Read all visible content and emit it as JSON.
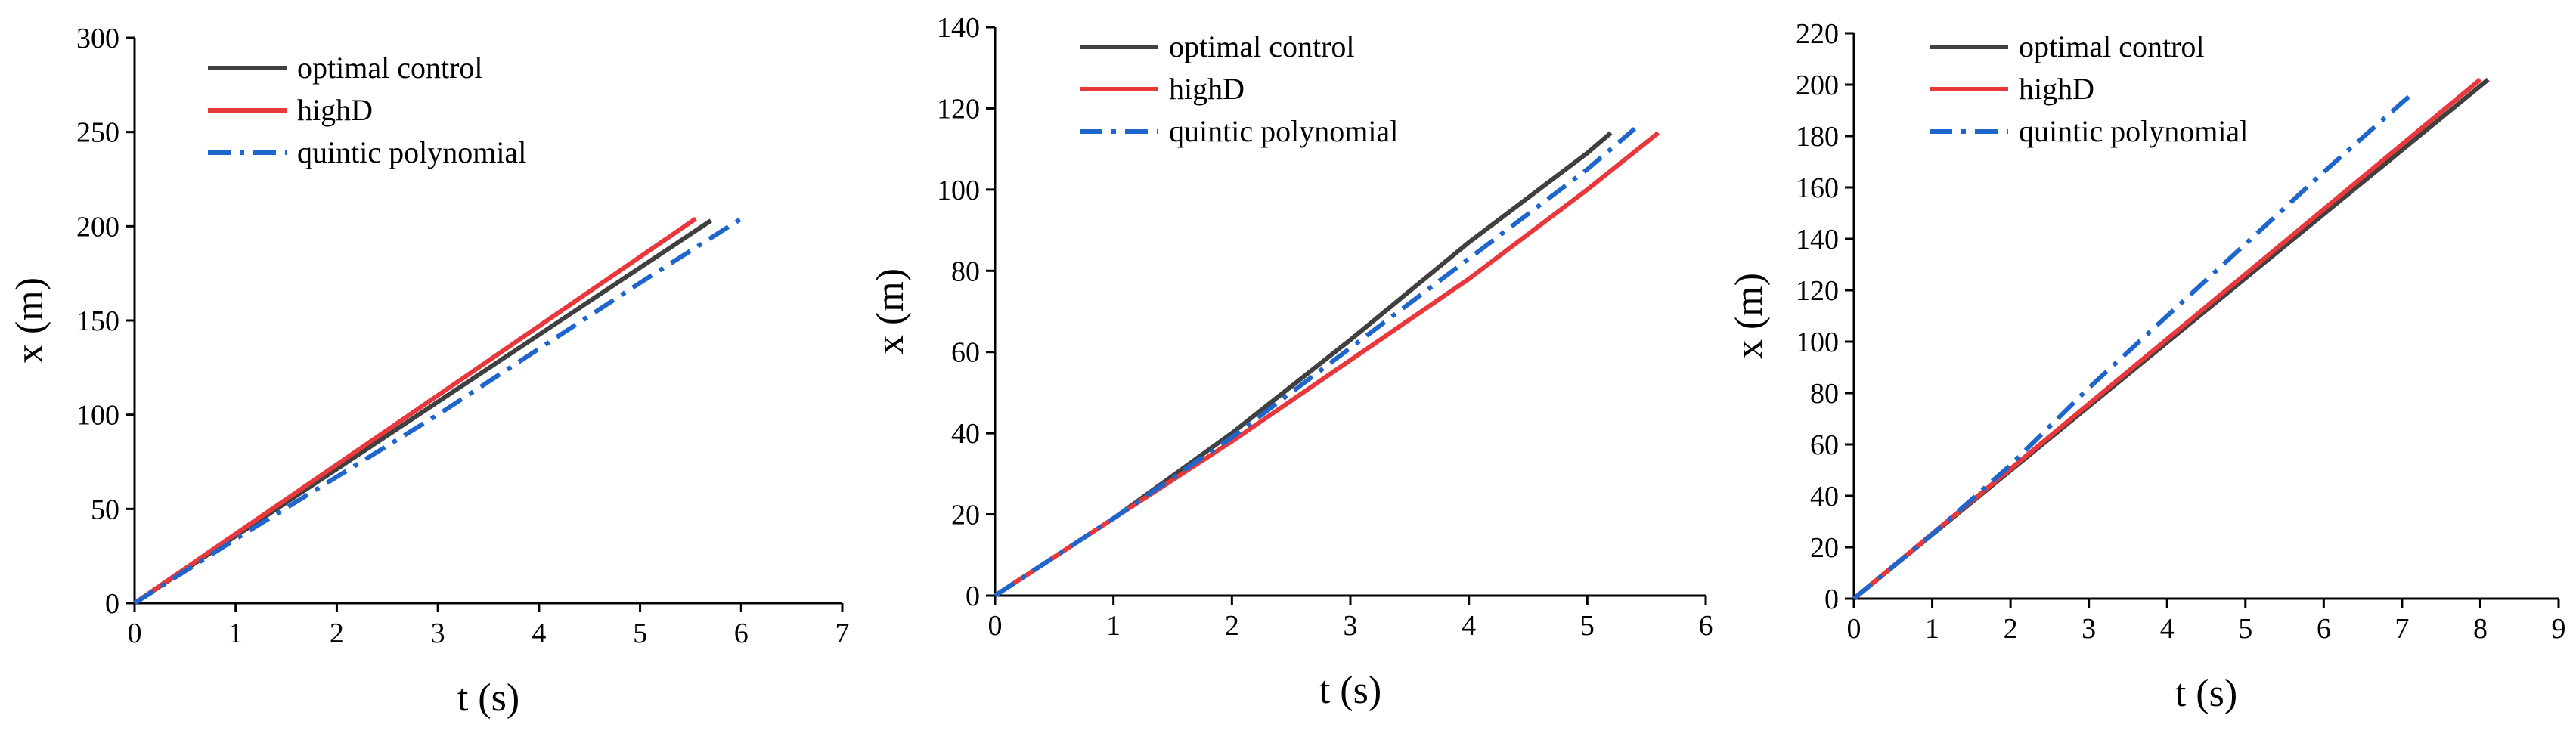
{
  "chart_data": [
    {
      "type": "line",
      "xlabel": "t (s)",
      "ylabel": "x (m)",
      "xlim": [
        0,
        7
      ],
      "ylim": [
        0,
        300
      ],
      "xticks": [
        0,
        1,
        2,
        3,
        4,
        5,
        6,
        7
      ],
      "yticks": [
        0,
        50,
        100,
        150,
        200,
        250,
        300
      ],
      "legend_position": "top-left",
      "grid": false,
      "series": [
        {
          "name": "optimal control",
          "color": "#404040",
          "style": "solid",
          "x": [
            0,
            5.7
          ],
          "y": [
            0,
            203
          ]
        },
        {
          "name": "highD",
          "color": "#e8383c",
          "style": "solid",
          "x": [
            0,
            5.55
          ],
          "y": [
            0,
            204
          ]
        },
        {
          "name": "quintic polynomial",
          "color": "#1f66cc",
          "style": "dashdot",
          "x": [
            0,
            1,
            2,
            3,
            4,
            5,
            6
          ],
          "y": [
            0,
            34,
            67,
            100,
            135,
            170,
            204
          ]
        }
      ]
    },
    {
      "type": "line",
      "xlabel": "t (s)",
      "ylabel": "x (m)",
      "xlim": [
        0,
        6
      ],
      "ylim": [
        0,
        140
      ],
      "xticks": [
        0,
        1,
        2,
        3,
        4,
        5,
        6
      ],
      "yticks": [
        0,
        20,
        40,
        60,
        80,
        100,
        120,
        140
      ],
      "legend_position": "top-left",
      "grid": false,
      "series": [
        {
          "name": "optimal control",
          "color": "#404040",
          "style": "solid",
          "x": [
            0,
            1,
            2,
            3,
            4,
            5,
            5.2
          ],
          "y": [
            0,
            19,
            40,
            63,
            87,
            109,
            114
          ]
        },
        {
          "name": "highD",
          "color": "#e8383c",
          "style": "solid",
          "x": [
            0,
            1,
            2,
            3,
            4,
            5,
            5.6
          ],
          "y": [
            0,
            19,
            38,
            58,
            78,
            100,
            114
          ]
        },
        {
          "name": "quintic polynomial",
          "color": "#1f66cc",
          "style": "dashdot",
          "x": [
            0,
            1,
            2,
            3,
            4,
            5,
            5.4
          ],
          "y": [
            0,
            19,
            39,
            61,
            83,
            105,
            115
          ]
        }
      ]
    },
    {
      "type": "line",
      "xlabel": "t (s)",
      "ylabel": "x (m)",
      "xlim": [
        0,
        9
      ],
      "ylim": [
        0,
        220
      ],
      "xticks": [
        0,
        1,
        2,
        3,
        4,
        5,
        6,
        7,
        8,
        9
      ],
      "yticks": [
        0,
        20,
        40,
        60,
        80,
        100,
        120,
        140,
        160,
        180,
        200,
        220
      ],
      "legend_position": "top-left",
      "grid": false,
      "series": [
        {
          "name": "optimal control",
          "color": "#404040",
          "style": "solid",
          "x": [
            0,
            8.1
          ],
          "y": [
            0,
            202
          ]
        },
        {
          "name": "highD",
          "color": "#e8383c",
          "style": "solid",
          "x": [
            0,
            8.0
          ],
          "y": [
            0,
            202
          ]
        },
        {
          "name": "quintic polynomial",
          "color": "#1f66cc",
          "style": "dashdot",
          "x": [
            0,
            1,
            2,
            3,
            4,
            5,
            6,
            7,
            7.15
          ],
          "y": [
            0,
            25,
            52,
            82,
            110,
            138,
            166,
            193,
            197
          ]
        }
      ]
    }
  ]
}
